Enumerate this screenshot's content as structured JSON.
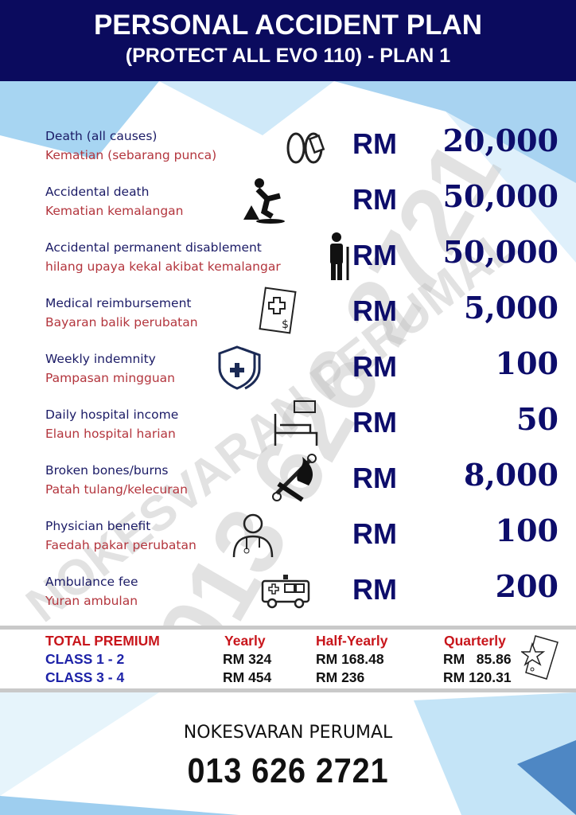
{
  "header": {
    "title": "PERSONAL ACCIDENT PLAN",
    "subtitle": "(PROTECT ALL EVO 110) - PLAN 1"
  },
  "colors": {
    "navy": "#0b0b5e",
    "label_en": "#1b1b66",
    "label_ms": "#b3353d",
    "premium_header": "#c8151b",
    "premium_class": "#1d22a8"
  },
  "currency": "RM",
  "benefits": [
    {
      "en": "Death (all causes)",
      "ms": "Kematian (sebarang punca)",
      "amount": "20,000",
      "icon": "feet-tag-icon"
    },
    {
      "en": "Accidental death",
      "ms": "Kematian kemalangan",
      "amount": "50,000",
      "icon": "slip-fall-icon"
    },
    {
      "en": "Accidental permanent disablement",
      "ms": "hilang upaya kekal akibat kemalangar",
      "amount": "50,000",
      "icon": "person-crutch-icon"
    },
    {
      "en": "Medical reimbursement",
      "ms": "Bayaran balik perubatan",
      "amount": "5,000",
      "icon": "medical-bill-icon"
    },
    {
      "en": "Weekly indemnity",
      "ms": "Pampasan mingguan",
      "amount": "100",
      "icon": "shield-icon"
    },
    {
      "en": "Daily hospital income",
      "ms": "Elaun hospital harian",
      "amount": "50",
      "icon": "hospital-bed-money-icon"
    },
    {
      "en": "Broken bones/burns",
      "ms": "Patah tulang/kelecuran",
      "amount": "8,000",
      "icon": "bone-fire-icon"
    },
    {
      "en": "Physician benefit",
      "ms": "Faedah pakar perubatan",
      "amount": "100",
      "icon": "doctor-icon"
    },
    {
      "en": "Ambulance fee",
      "ms": "Yuran ambulan",
      "amount": "200",
      "icon": "ambulance-icon"
    }
  ],
  "premium": {
    "title": "TOTAL PREMIUM",
    "columns": [
      "Yearly",
      "Half-Yearly",
      "Quarterly"
    ],
    "rows": [
      {
        "class": "CLASS 1 - 2",
        "values": [
          "RM 324",
          "RM 168.48",
          "RM   85.86"
        ]
      },
      {
        "class": "CLASS 3 - 4",
        "values": [
          "RM 454",
          "RM 236",
          "RM 120.31"
        ]
      }
    ]
  },
  "watermark": {
    "name": "NOKESVARAN PERUMAL",
    "phone": "013 626 2721"
  },
  "footer": {
    "name": "NOKESVARAN PERUMAL",
    "phone": "013 626 2721"
  }
}
